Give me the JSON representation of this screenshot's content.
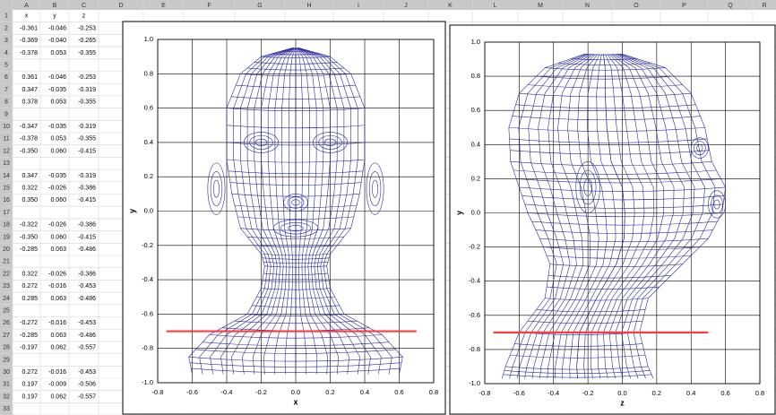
{
  "sheet": {
    "columns": [
      "A",
      "B",
      "C",
      "D",
      "E",
      "F",
      "G",
      "H",
      "I",
      "J",
      "K",
      "L",
      "M",
      "N",
      "O",
      "P",
      "Q",
      "R"
    ],
    "rows": [
      {
        "number": 1,
        "cells": [
          "x",
          "y",
          "z"
        ]
      },
      {
        "number": 2,
        "cells": [
          "-0.361",
          "-0.046",
          "-0.253"
        ]
      },
      {
        "number": 3,
        "cells": [
          "-0.369",
          "-0.040",
          "-0.265"
        ]
      },
      {
        "number": 4,
        "cells": [
          "-0.378",
          "0.053",
          "-0.355"
        ]
      },
      {
        "number": 5
      },
      {
        "number": 6,
        "cells": [
          "0.361",
          "-0.046",
          "-0.253"
        ]
      },
      {
        "number": 7,
        "cells": [
          "0.347",
          "-0.035",
          "-0.319"
        ]
      },
      {
        "number": 8,
        "cells": [
          "0.378",
          "0.053",
          "-0.355"
        ]
      },
      {
        "number": 9
      },
      {
        "number": 10,
        "cells": [
          "-0.347",
          "-0.035",
          "-0.319"
        ]
      },
      {
        "number": 11,
        "cells": [
          "-0.378",
          "0.053",
          "-0.355"
        ]
      },
      {
        "number": 12,
        "cells": [
          "-0.350",
          "0.060",
          "-0.415"
        ]
      },
      {
        "number": 13
      },
      {
        "number": 14,
        "cells": [
          "0.347",
          "-0.035",
          "-0.319"
        ]
      },
      {
        "number": 15,
        "cells": [
          "0.322",
          "-0.026",
          "-0.386"
        ]
      },
      {
        "number": 16,
        "cells": [
          "0.350",
          "0.060",
          "-0.415"
        ]
      },
      {
        "number": 17
      },
      {
        "number": 18,
        "cells": [
          "-0.322",
          "-0.026",
          "-0.386"
        ]
      },
      {
        "number": 19,
        "cells": [
          "-0.350",
          "0.060",
          "-0.415"
        ]
      },
      {
        "number": 20,
        "cells": [
          "-0.285",
          "0.063",
          "-0.486"
        ]
      },
      {
        "number": 21
      },
      {
        "number": 22,
        "cells": [
          "0.322",
          "-0.026",
          "-0.386"
        ]
      },
      {
        "number": 23,
        "cells": [
          "0.272",
          "-0.016",
          "-0.453"
        ]
      },
      {
        "number": 24,
        "cells": [
          "0.285",
          "0.063",
          "-0.486"
        ]
      },
      {
        "number": 25
      },
      {
        "number": 26,
        "cells": [
          "-0.272",
          "-0.016",
          "-0.453"
        ]
      },
      {
        "number": 27,
        "cells": [
          "-0.285",
          "0.063",
          "-0.486"
        ]
      },
      {
        "number": 28,
        "cells": [
          "-0.197",
          "0.062",
          "-0.557"
        ]
      },
      {
        "number": 29
      },
      {
        "number": 30,
        "cells": [
          "0.272",
          "-0.016",
          "-0.453"
        ]
      },
      {
        "number": 31,
        "cells": [
          "0.197",
          "-0.009",
          "-0.506"
        ]
      },
      {
        "number": 32,
        "cells": [
          "0.197",
          "0.062",
          "-0.557"
        ]
      },
      {
        "number": 33
      }
    ]
  },
  "chart_data": [
    {
      "type": "line",
      "x_label": "x",
      "y_label": "y",
      "x": [
        -0.75,
        0.7
      ],
      "series": [
        {
          "color": "#ff3b3b",
          "values": [
            -0.7,
            -0.7
          ]
        }
      ],
      "xlim": [
        -0.8,
        0.8
      ],
      "ylim": [
        -1,
        1
      ],
      "xticks": [
        -0.8,
        -0.6,
        -0.4,
        -0.2,
        {
          "value": 0,
          "label": "0.0"
        },
        0.2,
        0.4,
        0.6,
        0.8
      ],
      "yticks": [
        {
          "value": -1,
          "label": "-1.0"
        },
        -0.8,
        -0.6,
        -0.4,
        -0.2,
        {
          "value": 0,
          "label": "0.0"
        },
        0.2,
        0.4,
        0.6,
        0.8,
        {
          "value": 1,
          "label": "1.0"
        }
      ],
      "grid": true
    },
    {
      "type": "line",
      "x_label": "z",
      "y_label": "y",
      "x": [
        -0.75,
        0.5
      ],
      "series": [
        {
          "color": "#ff3b3b",
          "values": [
            -0.7,
            -0.7
          ]
        }
      ],
      "xlim": [
        -0.8,
        0.8
      ],
      "ylim": [
        -1,
        1
      ],
      "xticks": [
        -0.8,
        -0.6,
        -0.4,
        -0.2,
        {
          "value": 0,
          "label": "0.0"
        },
        0.2,
        0.4,
        0.6,
        0.8
      ],
      "yticks": [
        {
          "value": -1,
          "label": "-1.0"
        },
        -0.8,
        -0.6,
        -0.4,
        -0.2,
        {
          "value": 0,
          "label": "0.0"
        },
        0.2,
        0.4,
        0.6,
        0.8,
        {
          "value": 1,
          "label": "1.0"
        }
      ],
      "grid": true
    }
  ]
}
